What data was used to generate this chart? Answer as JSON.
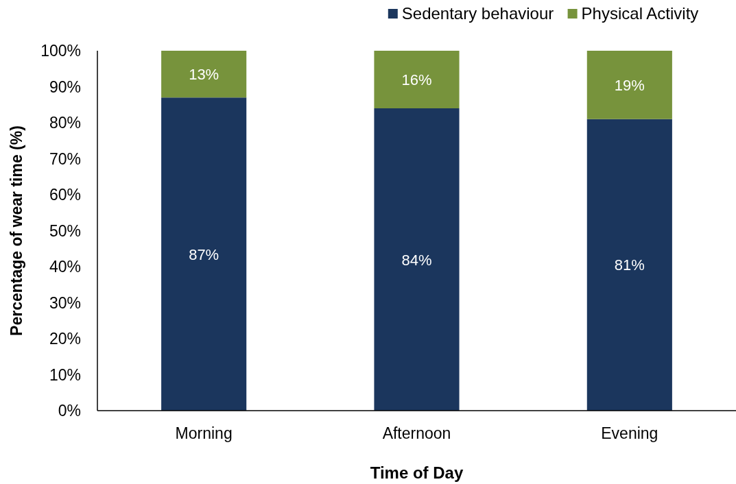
{
  "chart_data": {
    "type": "bar",
    "stacked": true,
    "xlabel": "Time of Day",
    "ylabel": "Percentage of wear time (%)",
    "categories": [
      "Morning",
      "Afternoon",
      "Evening"
    ],
    "series": [
      {
        "name": "Sedentary behaviour",
        "color": "#1b365d",
        "values": [
          87,
          84,
          81
        ],
        "value_labels": [
          "87%",
          "84%",
          "81%"
        ]
      },
      {
        "name": "Physical Activity",
        "color": "#77933c",
        "values": [
          13,
          16,
          19
        ],
        "value_labels": [
          "13%",
          "16%",
          "19%"
        ]
      }
    ],
    "ylim": [
      0,
      100
    ],
    "yticks": [
      {
        "value": 0,
        "label": "0%"
      },
      {
        "value": 10,
        "label": "10%"
      },
      {
        "value": 20,
        "label": "20%"
      },
      {
        "value": 30,
        "label": "30%"
      },
      {
        "value": 40,
        "label": "40%"
      },
      {
        "value": 50,
        "label": "50%"
      },
      {
        "value": 60,
        "label": "60%"
      },
      {
        "value": 70,
        "label": "70%"
      },
      {
        "value": 80,
        "label": "80%"
      },
      {
        "value": 90,
        "label": "90%"
      },
      {
        "value": 100,
        "label": "100%"
      }
    ],
    "grid": false,
    "legend": "top right"
  }
}
